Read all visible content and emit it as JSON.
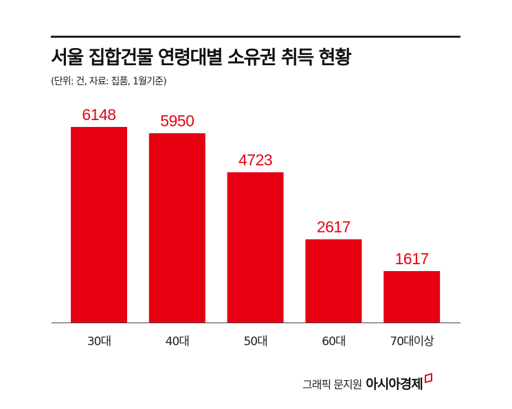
{
  "chart_data": {
    "type": "bar",
    "title": "서울 집합건물 연령대별 소유권 취득 현황",
    "subtitle": "(단위: 건, 자료: 집품, 1월기준)",
    "categories": [
      "30대",
      "40대",
      "50대",
      "60대",
      "70대이상"
    ],
    "values": [
      6148,
      5950,
      4723,
      2617,
      1617
    ],
    "ylim": [
      0,
      6148
    ],
    "grid": false,
    "bar_color": "#e60012"
  },
  "credit": {
    "text": "그래픽 문지원",
    "brand": "아시아경제"
  }
}
